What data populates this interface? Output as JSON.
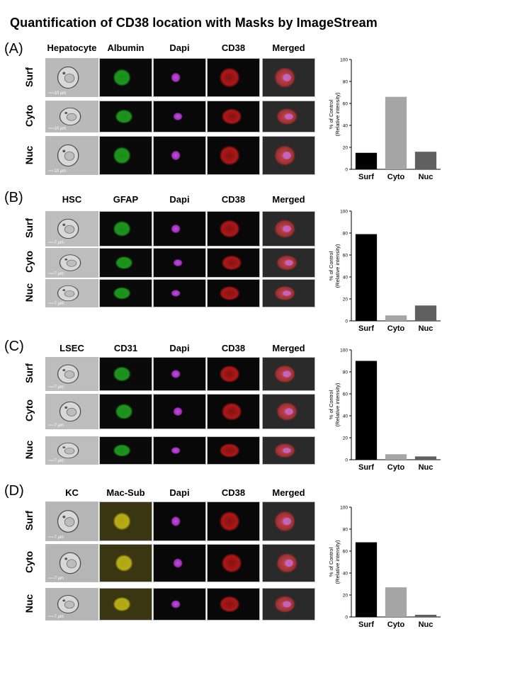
{
  "title": "Quantification of CD38 location with Masks by ImageStream",
  "rows": [
    "Surf",
    "Cyto",
    "Nuc"
  ],
  "panels": [
    {
      "label": "(A)",
      "columns": [
        "Hepatocyte",
        "Albumin",
        "Dapi",
        "CD38",
        "Merged"
      ],
      "scale_bars": [
        "10 µm",
        "10 µm",
        "10 µm"
      ],
      "marker_color": "#22c422",
      "bf_background": "#b9b9b9",
      "marker_background": "#0a0a0a"
    },
    {
      "label": "(B)",
      "columns": [
        "HSC",
        "GFAP",
        "Dapi",
        "CD38",
        "Merged"
      ],
      "scale_bars": [
        "7 µm",
        "7 µm",
        "7 µm"
      ],
      "marker_color": "#22c422",
      "bf_background": "#bdbdbd",
      "marker_background": "#0a0a0a"
    },
    {
      "label": "(C)",
      "columns": [
        "LSEC",
        "CD31",
        "Dapi",
        "CD38",
        "Merged"
      ],
      "scale_bars": [
        "7 µm",
        "7 µm",
        "7 µm"
      ],
      "marker_color": "#22c422",
      "bf_background": "#bdbdbd",
      "marker_background": "#0a0a0a"
    },
    {
      "label": "(D)",
      "columns": [
        "KC",
        "Mac-Sub",
        "Dapi",
        "CD38",
        "Merged"
      ],
      "scale_bars": [
        "7 µm",
        "7 µm",
        "7 µm"
      ],
      "marker_color": "#e0d418",
      "bf_background": "#b5b5b5",
      "marker_background": "#3a3612"
    }
  ],
  "chart_data": [
    {
      "type": "bar",
      "categories": [
        "Surf",
        "Cyto",
        "Nuc"
      ],
      "values": [
        15,
        66,
        16
      ],
      "ylabel": "% of Control (Relative intensity)",
      "ylabel_lines": [
        "% of Control",
        "(Relative intensity)"
      ],
      "ylim": [
        0,
        100
      ],
      "yticks": [
        0,
        20,
        40,
        60,
        80,
        100
      ],
      "colors": [
        "#000000",
        "#a6a6a6",
        "#606060"
      ],
      "grid": false
    },
    {
      "type": "bar",
      "categories": [
        "Surf",
        "Cyto",
        "Nuc"
      ],
      "values": [
        79,
        5,
        14
      ],
      "ylabel": "% of Control (Relative intensity)",
      "ylabel_lines": [
        "% of Control",
        "(Relative intensity)"
      ],
      "ylim": [
        0,
        100
      ],
      "yticks": [
        0,
        20,
        40,
        60,
        80,
        100
      ],
      "colors": [
        "#000000",
        "#a6a6a6",
        "#606060"
      ],
      "grid": false
    },
    {
      "type": "bar",
      "categories": [
        "Surf",
        "Cyto",
        "Nuc"
      ],
      "values": [
        90,
        5,
        3
      ],
      "ylabel": "% of Control (Relative intensity)",
      "ylabel_lines": [
        "% of Control",
        "(Relative intensity)"
      ],
      "ylim": [
        0,
        100
      ],
      "yticks": [
        0,
        20,
        40,
        60,
        80,
        100
      ],
      "colors": [
        "#000000",
        "#a6a6a6",
        "#606060"
      ],
      "grid": false
    },
    {
      "type": "bar",
      "categories": [
        "Surf",
        "Cyto",
        "Nuc"
      ],
      "values": [
        68,
        27,
        2
      ],
      "ylabel": "% of Control (Relative intensity)",
      "ylabel_lines": [
        "% of Control",
        "(Relative intensity)"
      ],
      "ylim": [
        0,
        100
      ],
      "yticks": [
        0,
        20,
        40,
        60,
        80,
        100
      ],
      "colors": [
        "#000000",
        "#a6a6a6",
        "#606060"
      ],
      "grid": false
    }
  ]
}
